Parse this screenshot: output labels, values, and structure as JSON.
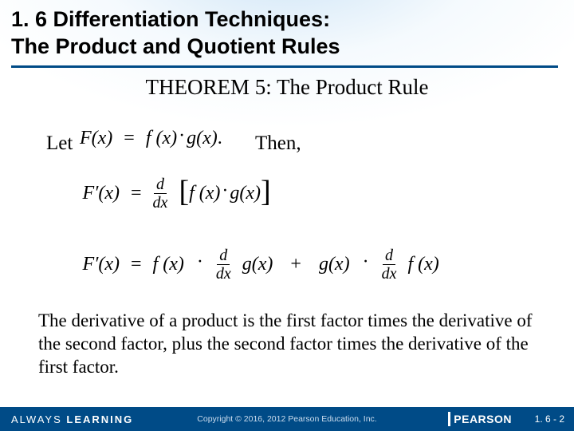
{
  "title": {
    "line1": "1. 6 Differentiation Techniques:",
    "line2": "The Product and Quotient Rules"
  },
  "theorem_heading": "THEOREM 5:  The Product Rule",
  "let_text": "Let",
  "then_text": "Then,",
  "eq1": {
    "lhs": "F(x)",
    "eq": "=",
    "rhs_f": "f (x)",
    "dot": "·",
    "rhs_g": "g(x)",
    "period": "."
  },
  "eq2": {
    "lhs": "F′(x)",
    "eq": "=",
    "d": "d",
    "dx": "dx",
    "lbrack": "[",
    "f": "f (x)",
    "dot": "·",
    "g": "g(x)",
    "rbrack": "]"
  },
  "eq3": {
    "lhs": "F′(x)",
    "eq": "=",
    "t1_f": "f (x)",
    "dot": "·",
    "d": "d",
    "dx": "dx",
    "t1_g": "g(x)",
    "plus": "+",
    "t2_g": "g(x)",
    "t2_f": "f (x)"
  },
  "explanation": "The derivative of a product is the first factor times the derivative of the second factor, plus the second factor times the derivative of the first factor.",
  "footer": {
    "always1": "ALWAYS ",
    "always2": "LEARNING",
    "copyright": "Copyright © 2016, 2012 Pearson Education, Inc.",
    "brand": "PEARSON",
    "page": "1. 6 - 2"
  },
  "colors": {
    "rule": "#004b87",
    "footer_bg": "#004b87"
  }
}
